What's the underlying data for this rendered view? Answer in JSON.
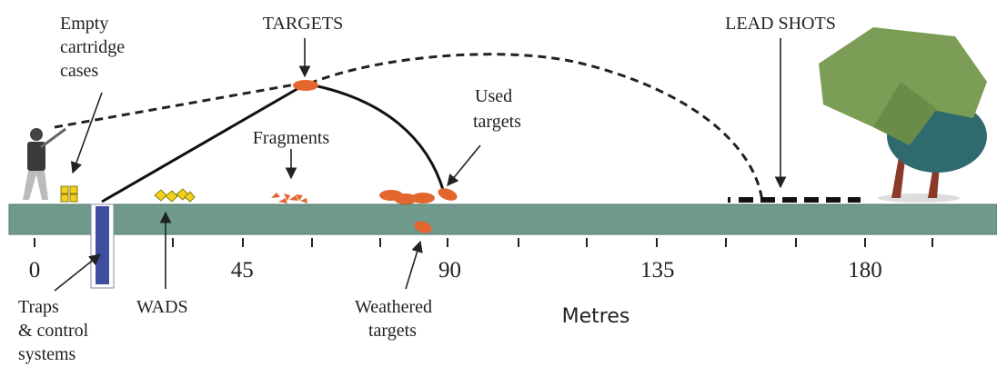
{
  "labels": {
    "targets": "TARGETS",
    "lead_shots": "LEAD SHOTS",
    "empty_cartridge_cases": [
      "Empty",
      "cartridge",
      "cases"
    ],
    "fragments": "Fragments",
    "used_targets": [
      "Used",
      "targets"
    ],
    "traps": [
      "Traps",
      "& control",
      "systems"
    ],
    "wads": "WADS",
    "weathered_targets": [
      "Weathered",
      "targets"
    ]
  },
  "axis": {
    "ticks": [
      0,
      45,
      90,
      135,
      180
    ],
    "label": "Metres"
  }
}
